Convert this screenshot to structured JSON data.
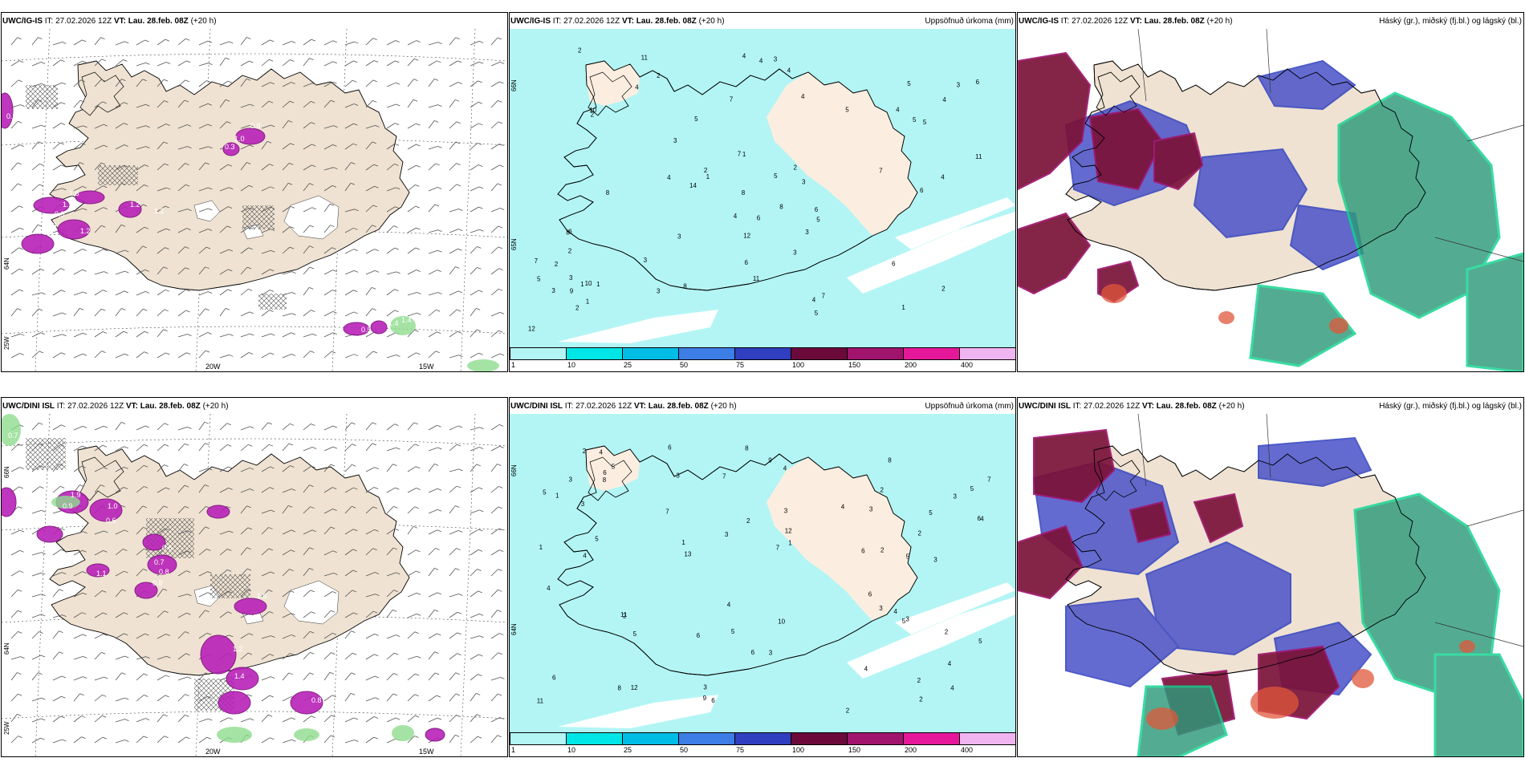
{
  "rows": [
    {
      "model": "UWC/IG-IS",
      "it": "27.02.2026 12Z",
      "vt_label": "VT:",
      "vt": "Lau. 28.feb. 08Z",
      "lead": "(+20 h)",
      "it_label": "IT:"
    },
    {
      "model": "UWC/DINI ISL",
      "it": "27.02.2026 12Z",
      "vt_label": "VT:",
      "vt": "Lau. 28.feb. 08Z",
      "lead": "(+20 h)",
      "it_label": "IT:"
    }
  ],
  "precip_title": "Uppsöfnuð úrkoma (mm)",
  "cloud_title": "Háský (gr.), miðský (fj.bl.) og lágský (bl.)",
  "colorbar": {
    "ticks": [
      "1",
      "10",
      "25",
      "50",
      "75",
      "100",
      "150",
      "200",
      "400"
    ],
    "colors": [
      "#b3f5f5",
      "#00e5e5",
      "#00bde6",
      "#3d7de6",
      "#2f3fbf",
      "#6b0a3a",
      "#a0146e",
      "#e6189a",
      "#f0b4f0"
    ]
  },
  "axis": {
    "lon_20w": "20W",
    "lon_15w": "15W",
    "lon_25w": "25W",
    "lat_66n": "66N",
    "lat_65n": "65N",
    "lat_64n": "64N"
  },
  "precip_numbers_top": [
    "4",
    "4",
    "1",
    "1",
    "2",
    "2",
    "3",
    "3",
    "3",
    "3",
    "4",
    "2",
    "10",
    "6",
    "8",
    "4",
    "1",
    "5",
    "3",
    "4",
    "6",
    "2",
    "7",
    "7",
    "4",
    "2",
    "3",
    "3",
    "14",
    "5",
    "8",
    "12",
    "11",
    "11",
    "3",
    "4",
    "6",
    "12",
    "8",
    "5",
    "3",
    "7",
    "11",
    "8",
    "6",
    "5",
    "2",
    "5",
    "6",
    "7",
    "4",
    "3",
    "5",
    "7",
    "10",
    "2",
    "4",
    "5",
    "9",
    "8",
    "1",
    "1",
    "2",
    "3",
    "4",
    "4",
    "5",
    "6",
    "6",
    "5",
    "1",
    "2"
  ],
  "precip_numbers_bottom": [
    "8",
    "4",
    "6",
    "2",
    "7",
    "5",
    "3",
    "4",
    "1",
    "3",
    "2",
    "3",
    "6",
    "3",
    "5",
    "2",
    "10",
    "2",
    "3",
    "4",
    "6",
    "5",
    "2",
    "3",
    "12",
    "11",
    "7",
    "8",
    "6",
    "5",
    "4",
    "9",
    "6",
    "3",
    "7",
    "5",
    "9",
    "11",
    "12",
    "13",
    "8",
    "5",
    "6",
    "3",
    "4",
    "2",
    "4",
    "6",
    "8",
    "4",
    "3",
    "5",
    "6",
    "2",
    "1",
    "1",
    "2",
    "4",
    "7",
    "5",
    "4",
    "3",
    "6",
    "2",
    "3",
    "5",
    "1",
    "4",
    "4",
    "3",
    "5",
    "2"
  ],
  "wind_labels_top": [
    "0.3",
    "1.5",
    "1.1",
    "0.9",
    "1.3",
    "1.2",
    "1.2",
    "1.2",
    "0.8",
    "1.0",
    "0.3",
    "1.4",
    "0.5",
    "1.4"
  ],
  "wind_labels_bottom": [
    "0.7",
    "1.6",
    "1.9",
    "0.9",
    "1.0",
    "0.6",
    "0.6",
    "0.7",
    "0.8",
    "0.8",
    "1.1",
    "1.6",
    "1.2",
    "1.4",
    "1.4",
    "1.6",
    "0.8"
  ]
}
